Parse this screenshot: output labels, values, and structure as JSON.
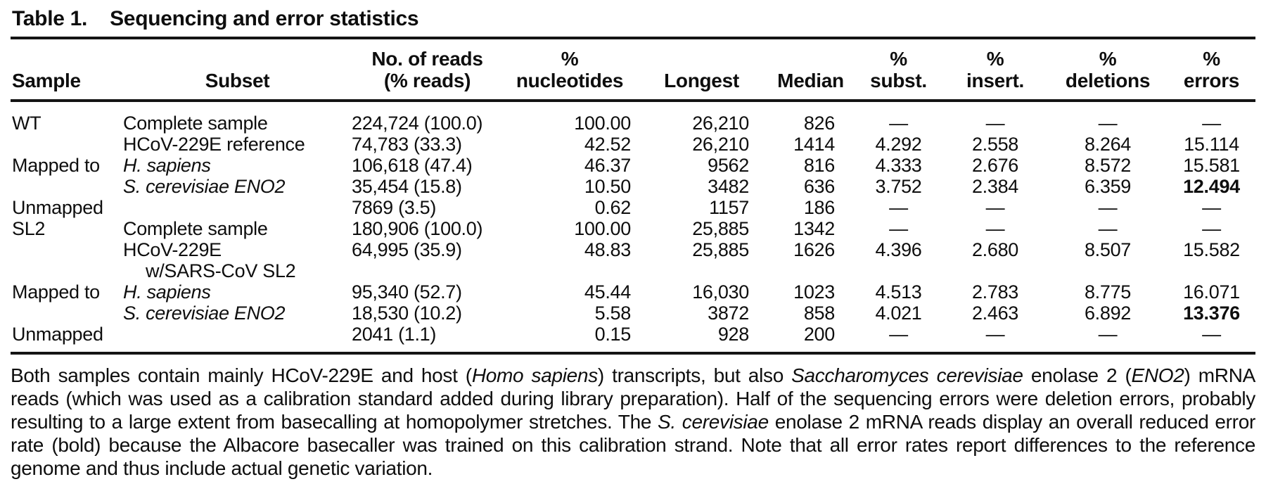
{
  "title": {
    "label": "Table 1.",
    "text": "Sequencing and error statistics"
  },
  "table": {
    "headers": [
      {
        "lines": [
          "Sample"
        ]
      },
      {
        "lines": [
          "Subset"
        ]
      },
      {
        "lines": [
          "No. of reads",
          "(% reads)"
        ]
      },
      {
        "lines": [
          "%",
          "nucleotides"
        ]
      },
      {
        "lines": [
          "Longest"
        ]
      },
      {
        "lines": [
          "Median"
        ]
      },
      {
        "lines": [
          "%",
          "subst."
        ]
      },
      {
        "lines": [
          "%",
          "insert."
        ]
      },
      {
        "lines": [
          "%",
          "deletions"
        ]
      },
      {
        "lines": [
          "%",
          "errors"
        ]
      }
    ],
    "rows": [
      {
        "cells": [
          {
            "t": "WT"
          },
          {
            "t": "Complete sample"
          },
          {
            "t": "224,724 (100.0)"
          },
          {
            "t": "100.00"
          },
          {
            "t": "26,210"
          },
          {
            "t": "826"
          },
          {
            "t": "—"
          },
          {
            "t": "—"
          },
          {
            "t": "—"
          },
          {
            "t": "—"
          }
        ]
      },
      {
        "cells": [
          {
            "t": ""
          },
          {
            "t": "HCoV-229E reference"
          },
          {
            "t": "74,783 (33.3)"
          },
          {
            "t": "42.52"
          },
          {
            "t": "26,210"
          },
          {
            "t": "1414"
          },
          {
            "t": "4.292"
          },
          {
            "t": "2.558"
          },
          {
            "t": "8.264"
          },
          {
            "t": "15.114"
          }
        ]
      },
      {
        "cells": [
          {
            "t": "Mapped to"
          },
          {
            "t": "H. sapiens",
            "i": true
          },
          {
            "t": "106,618 (47.4)"
          },
          {
            "t": "46.37"
          },
          {
            "t": "9562"
          },
          {
            "t": "816"
          },
          {
            "t": "4.333"
          },
          {
            "t": "2.676"
          },
          {
            "t": "8.572"
          },
          {
            "t": "15.581"
          }
        ]
      },
      {
        "cells": [
          {
            "t": ""
          },
          {
            "t": "S. cerevisiae ENO2",
            "i": true
          },
          {
            "t": "35,454 (15.8)"
          },
          {
            "t": "10.50"
          },
          {
            "t": "3482"
          },
          {
            "t": "636"
          },
          {
            "t": "3.752"
          },
          {
            "t": "2.384"
          },
          {
            "t": "6.359"
          },
          {
            "t": "12.494",
            "b": true
          }
        ]
      },
      {
        "cells": [
          {
            "t": "Unmapped"
          },
          {
            "t": ""
          },
          {
            "t": "7869 (3.5)"
          },
          {
            "t": "0.62"
          },
          {
            "t": "1157"
          },
          {
            "t": "186"
          },
          {
            "t": "—"
          },
          {
            "t": "—"
          },
          {
            "t": "—"
          },
          {
            "t": "—"
          }
        ]
      },
      {
        "cells": [
          {
            "t": "SL2"
          },
          {
            "t": "Complete sample"
          },
          {
            "t": "180,906 (100.0)"
          },
          {
            "t": "100.00"
          },
          {
            "t": "25,885"
          },
          {
            "t": "1342"
          },
          {
            "t": "—"
          },
          {
            "t": "—"
          },
          {
            "t": "—"
          },
          {
            "t": "—"
          }
        ]
      },
      {
        "cells": [
          {
            "t": ""
          },
          {
            "t": "HCoV-229E",
            "t2": "w/SARS-CoV SL2"
          },
          {
            "t": "64,995 (35.9)"
          },
          {
            "t": "48.83"
          },
          {
            "t": "25,885"
          },
          {
            "t": "1626"
          },
          {
            "t": "4.396"
          },
          {
            "t": "2.680"
          },
          {
            "t": "8.507"
          },
          {
            "t": "15.582"
          }
        ]
      },
      {
        "cells": [
          {
            "t": "Mapped to"
          },
          {
            "t": "H. sapiens",
            "i": true
          },
          {
            "t": "95,340 (52.7)"
          },
          {
            "t": "45.44"
          },
          {
            "t": "16,030"
          },
          {
            "t": "1023"
          },
          {
            "t": "4.513"
          },
          {
            "t": "2.783"
          },
          {
            "t": "8.775"
          },
          {
            "t": "16.071"
          }
        ]
      },
      {
        "cells": [
          {
            "t": ""
          },
          {
            "t": "S. cerevisiae ENO2",
            "i": true
          },
          {
            "t": "18,530 (10.2)"
          },
          {
            "t": "5.58"
          },
          {
            "t": "3872"
          },
          {
            "t": "858"
          },
          {
            "t": "4.021"
          },
          {
            "t": "2.463"
          },
          {
            "t": "6.892"
          },
          {
            "t": "13.376",
            "b": true
          }
        ]
      },
      {
        "cells": [
          {
            "t": "Unmapped"
          },
          {
            "t": ""
          },
          {
            "t": "2041 (1.1)"
          },
          {
            "t": "0.15"
          },
          {
            "t": "928"
          },
          {
            "t": "200"
          },
          {
            "t": "—"
          },
          {
            "t": "—"
          },
          {
            "t": "—"
          },
          {
            "t": "—"
          }
        ]
      }
    ]
  },
  "footnote": {
    "segments": [
      {
        "t": "Both samples contain mainly HCoV-229E and host ("
      },
      {
        "t": "Homo sapiens",
        "i": true
      },
      {
        "t": ") transcripts, but also "
      },
      {
        "t": "Saccharomyces cerevisiae",
        "i": true
      },
      {
        "t": " enolase 2 ("
      },
      {
        "t": "ENO2",
        "i": true
      },
      {
        "t": ") mRNA reads (which was used as a calibration standard added during library preparation). Half of the sequencing errors were deletion errors, probably resulting to a large extent from basecalling at homopolymer stretches. The "
      },
      {
        "t": "S. cerevisiae",
        "i": true
      },
      {
        "t": " enolase 2 mRNA reads display an overall reduced error rate (bold) because the Albacore basecaller was trained on this calibration strand. Note that all error rates report differences to the reference genome and thus include actual genetic variation."
      }
    ]
  },
  "colors": {
    "text": "#0e0e0e",
    "rule": "#141414",
    "background": "#ffffff"
  }
}
